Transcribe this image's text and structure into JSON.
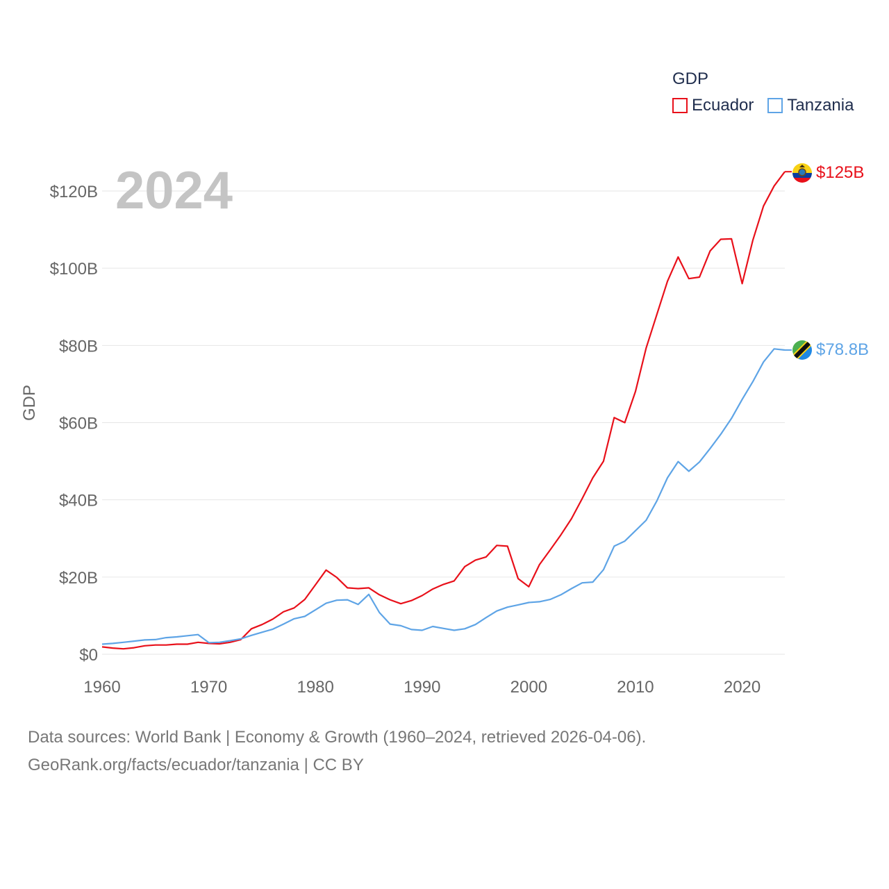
{
  "colors": {
    "ecuador": "#e8101a",
    "tanzania": "#5ea4e6",
    "grid": "#e6e6e6",
    "axis_text": "#666666",
    "year_text": "#c4c4c4"
  },
  "legend": {
    "title": "GDP",
    "items": [
      "Ecuador",
      "Tanzania"
    ]
  },
  "year_label": "2024",
  "end_labels": {
    "ecuador": "$125B",
    "tanzania": "$78.8B"
  },
  "flags": {
    "ecuador": "ecuador-flag-icon",
    "tanzania": "tanzania-flag-icon"
  },
  "source": {
    "line1": "Data sources: World Bank | Economy & Growth (1960–2024, retrieved 2026-04-06).",
    "line2": "GeoRank.org/facts/ecuador/tanzania | CC BY"
  },
  "chart_data": {
    "type": "line",
    "title": "",
    "xlabel": "",
    "ylabel": "GDP",
    "xlim": [
      1960,
      2024
    ],
    "ylim": [
      0,
      120
    ],
    "y_unit": "billions USD",
    "x_ticks": [
      1960,
      1970,
      1980,
      1990,
      2000,
      2010,
      2020
    ],
    "x_tick_labels": [
      "1960",
      "1970",
      "1980",
      "1990",
      "2000",
      "2010",
      "2020"
    ],
    "y_ticks": [
      0,
      20,
      40,
      60,
      80,
      100,
      120
    ],
    "y_tick_labels": [
      "$0",
      "$20B",
      "$40B",
      "$60B",
      "$80B",
      "$100B",
      "$120B"
    ],
    "grid": true,
    "legend_position": "top-right",
    "x": [
      1960,
      1961,
      1962,
      1963,
      1964,
      1965,
      1966,
      1967,
      1968,
      1969,
      1970,
      1971,
      1972,
      1973,
      1974,
      1975,
      1976,
      1977,
      1978,
      1979,
      1980,
      1981,
      1982,
      1983,
      1984,
      1985,
      1986,
      1987,
      1988,
      1989,
      1990,
      1991,
      1992,
      1993,
      1994,
      1995,
      1996,
      1997,
      1998,
      1999,
      2000,
      2001,
      2002,
      2003,
      2004,
      2005,
      2006,
      2007,
      2008,
      2009,
      2010,
      2011,
      2012,
      2013,
      2014,
      2015,
      2016,
      2017,
      2018,
      2019,
      2020,
      2021,
      2022,
      2023,
      2024
    ],
    "series": [
      {
        "name": "Ecuador",
        "color": "#e8101a",
        "values": [
          1.9,
          1.6,
          1.4,
          1.7,
          2.2,
          2.4,
          2.4,
          2.6,
          2.6,
          3.1,
          2.8,
          2.7,
          3.1,
          3.8,
          6.6,
          7.7,
          9.1,
          11.0,
          12.0,
          14.2,
          18.0,
          21.8,
          19.9,
          17.2,
          17.0,
          17.2,
          15.4,
          14.1,
          13.1,
          13.9,
          15.2,
          16.9,
          18.1,
          19.0,
          22.7,
          24.4,
          25.2,
          28.2,
          28.0,
          19.6,
          17.5,
          23.2,
          27.0,
          30.9,
          35.1,
          40.3,
          45.7,
          50.0,
          61.3,
          60.0,
          68.1,
          79.3,
          88.0,
          96.6,
          102.9,
          97.3,
          97.7,
          104.5,
          107.5,
          107.6,
          96.0,
          107.2,
          116.1,
          121.3,
          125.0
        ]
      },
      {
        "name": "Tanzania",
        "color": "#5ea4e6",
        "values": [
          2.6,
          2.8,
          3.1,
          3.4,
          3.7,
          3.8,
          4.3,
          4.5,
          4.8,
          5.1,
          3.0,
          3.1,
          3.5,
          4.0,
          4.9,
          5.7,
          6.5,
          7.8,
          9.2,
          9.8,
          11.5,
          13.2,
          14.0,
          14.1,
          12.9,
          15.5,
          10.8,
          7.8,
          7.4,
          6.4,
          6.2,
          7.2,
          6.7,
          6.2,
          6.6,
          7.7,
          9.5,
          11.2,
          12.2,
          12.8,
          13.4,
          13.6,
          14.2,
          15.4,
          17.0,
          18.5,
          18.7,
          21.9,
          28.0,
          29.3,
          32.0,
          34.7,
          39.7,
          45.7,
          49.9,
          47.4,
          49.8,
          53.3,
          57.0,
          61.1,
          66.0,
          70.6,
          75.7,
          79.1,
          78.8
        ]
      }
    ],
    "annotations": [
      {
        "text": "2024",
        "kind": "current-year"
      },
      {
        "text": "$125B",
        "series": "Ecuador"
      },
      {
        "text": "$78.8B",
        "series": "Tanzania"
      }
    ]
  }
}
